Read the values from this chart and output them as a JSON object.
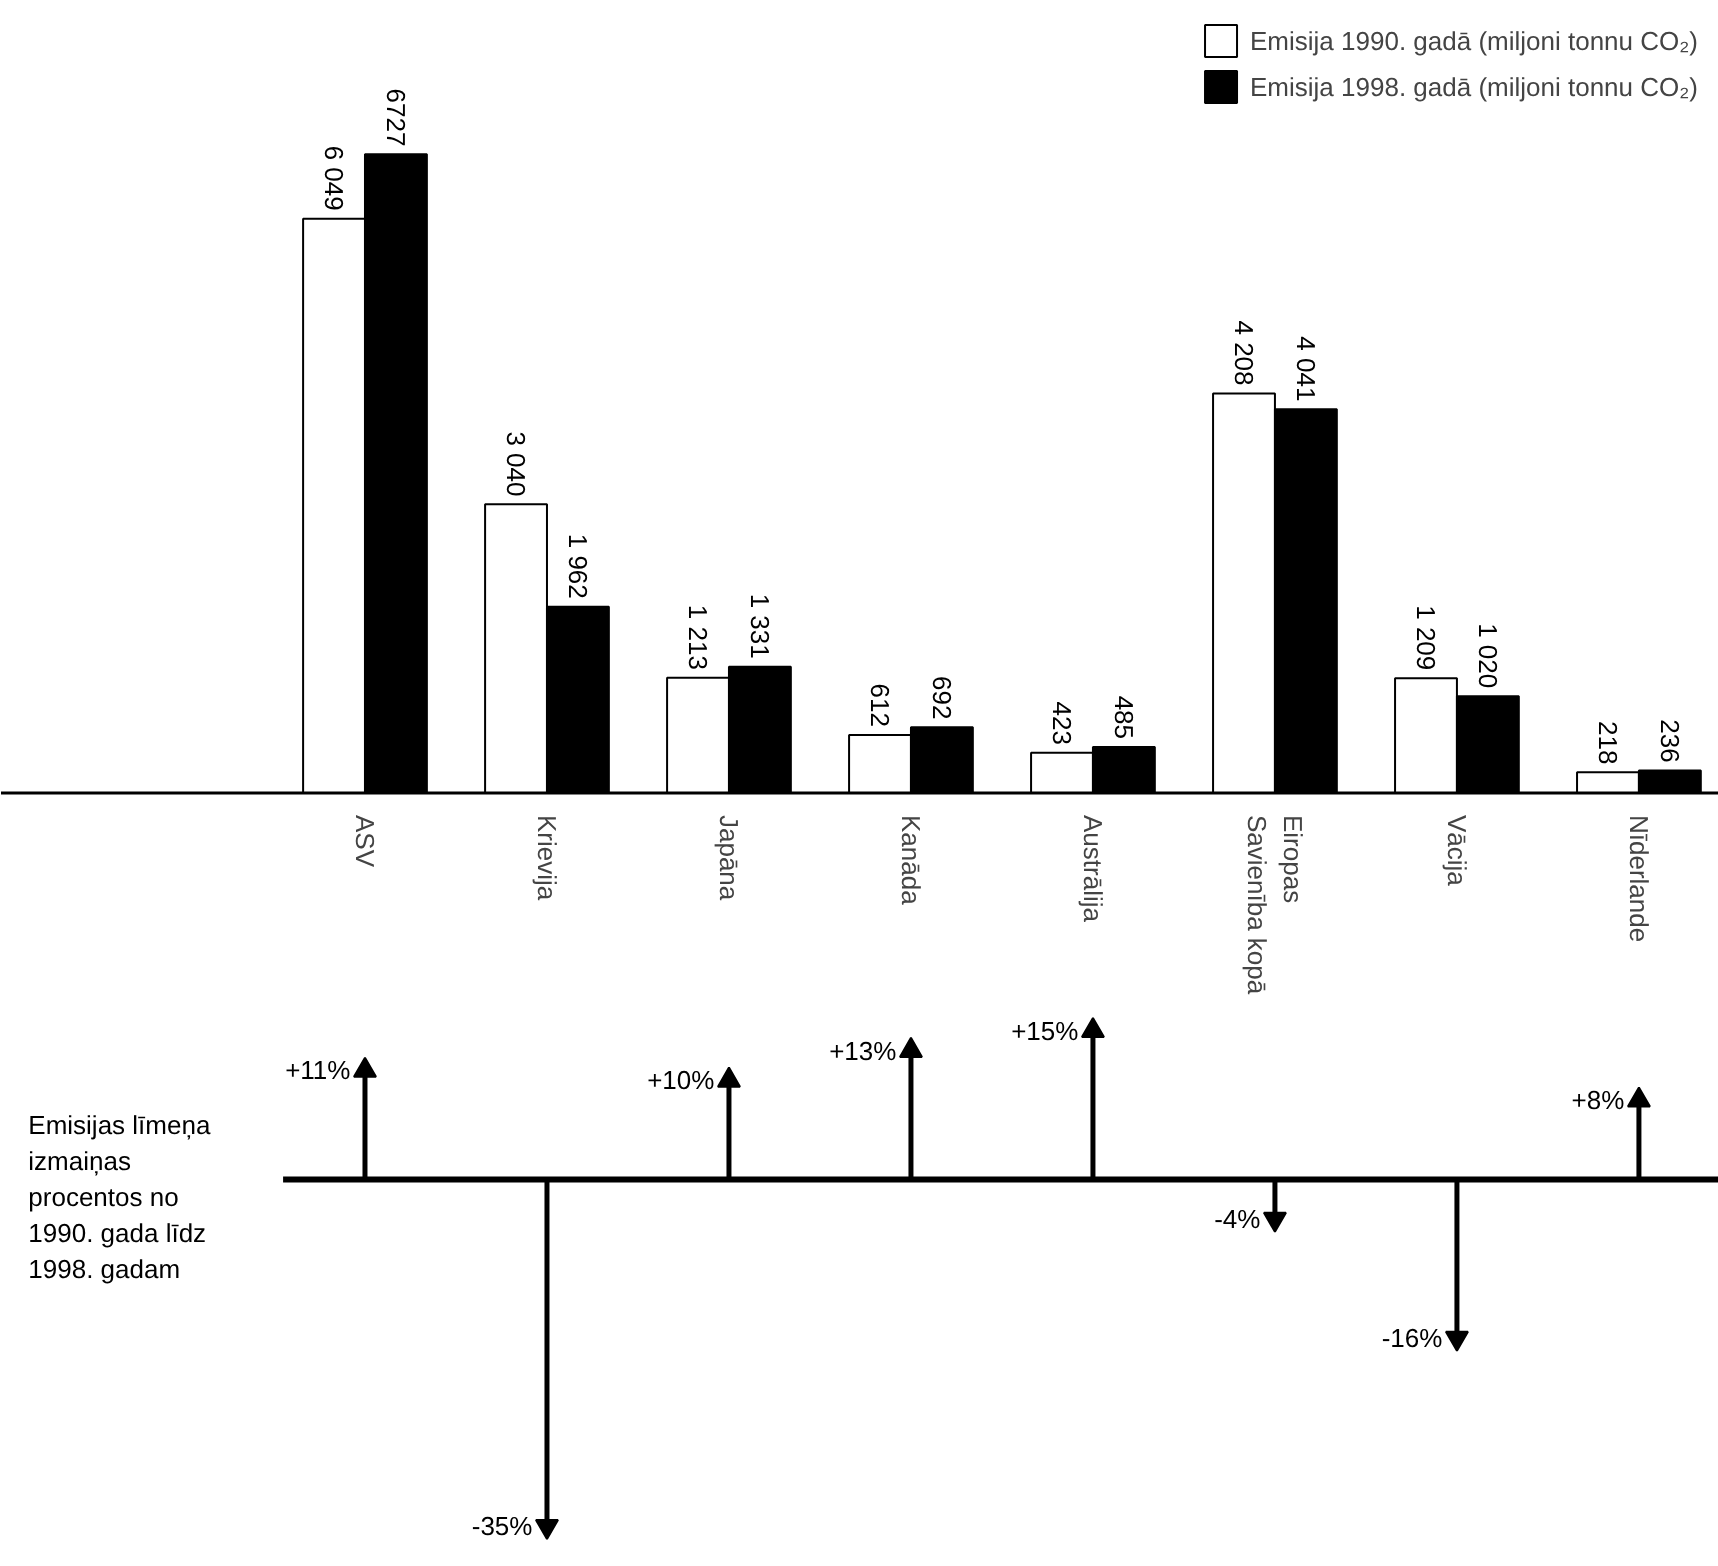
{
  "chart_data": [
    {
      "type": "bar",
      "categories": [
        "ASV",
        "Krievija",
        "Japāna",
        "Kanāda",
        "Austrālija",
        "Eiropas Savienība kopā",
        "Vācija",
        "Nīderlande"
      ],
      "series": [
        {
          "name": "Emisija 1990. gadā (miljoni tonnu CO₂)",
          "color": "#ffffff",
          "values": [
            6049,
            3040,
            1213,
            612,
            423,
            4208,
            1209,
            218
          ],
          "value_labels": [
            "6 049",
            "3 040",
            "1 213",
            "612",
            "423",
            "4 208",
            "1 209",
            "218"
          ]
        },
        {
          "name": "Emisija 1998. gadā (miljoni tonnu CO₂)",
          "color": "#000000",
          "values": [
            6727,
            1962,
            1331,
            692,
            485,
            4041,
            1020,
            236
          ],
          "value_labels": [
            "6727",
            "1 962",
            "1 331",
            "692",
            "485",
            "4 041",
            "1 020",
            "236"
          ]
        }
      ],
      "legend": "top right",
      "tick_labels": "x",
      "grid": false
    },
    {
      "type": "lollipop",
      "categories": [
        "ASV",
        "Krievija",
        "Japāna",
        "Kanāda",
        "Austrālija",
        "Eiropas Savienība kopā",
        "Vācija",
        "Nīderlande"
      ],
      "ylabel": "Emisijas līmeņa izmaiņas procentos no 1990. gada līdz 1998. gadam",
      "values": [
        11,
        -35,
        10,
        13,
        15,
        -4,
        -16,
        8
      ],
      "value_labels": [
        "+11%",
        "-35%",
        "+10%",
        "+13%",
        "+15%",
        "-4%",
        "-16%",
        "+8%"
      ],
      "color": "#000000",
      "marker": "triangle",
      "tick_labels": false,
      "grid": false
    }
  ]
}
